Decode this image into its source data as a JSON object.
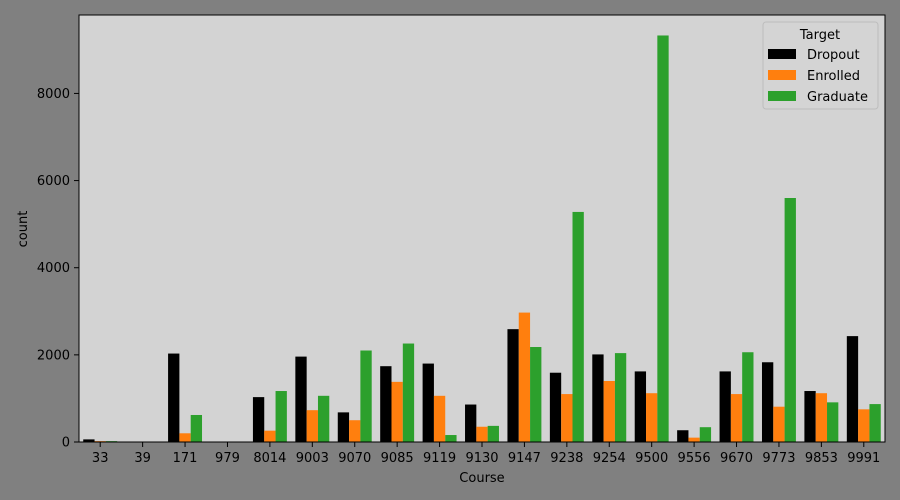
{
  "chart_data": {
    "type": "bar",
    "categories": [
      "33",
      "39",
      "171",
      "979",
      "8014",
      "9003",
      "9070",
      "9085",
      "9119",
      "9130",
      "9147",
      "9238",
      "9254",
      "9500",
      "9556",
      "9670",
      "9773",
      "9853",
      "9991"
    ],
    "series": [
      {
        "name": "Dropout",
        "color": "#000000",
        "values": [
          60,
          0,
          2030,
          0,
          1030,
          1960,
          680,
          1740,
          1800,
          860,
          2590,
          1590,
          2010,
          1620,
          270,
          1620,
          1830,
          1170,
          2430
        ]
      },
      {
        "name": "Enrolled",
        "color": "#ff7f0e",
        "values": [
          20,
          0,
          200,
          0,
          260,
          730,
          500,
          1380,
          1060,
          350,
          2970,
          1100,
          1400,
          1120,
          100,
          1100,
          810,
          1120,
          750
        ]
      },
      {
        "name": "Graduate",
        "color": "#2ca02c",
        "values": [
          20,
          0,
          620,
          0,
          1170,
          1060,
          2100,
          2260,
          160,
          370,
          2180,
          5280,
          2040,
          9330,
          340,
          2060,
          5600,
          910,
          870
        ]
      }
    ],
    "xlabel": "Course",
    "ylabel": "count",
    "ylim": [
      0,
      9800
    ],
    "yticks": [
      0,
      2000,
      4000,
      6000,
      8000
    ],
    "legend": {
      "title": "Target",
      "placement": "top-right"
    },
    "grid": false,
    "plot_background": "#d3d3d3",
    "figure_background": "#808080"
  }
}
